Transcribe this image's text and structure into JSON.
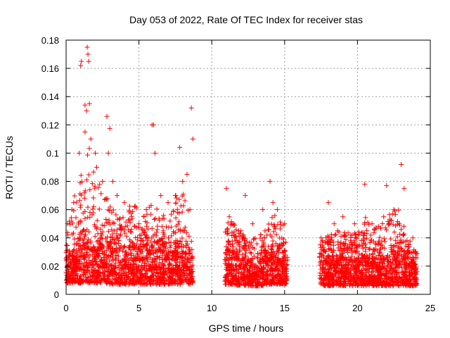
{
  "chart_data": {
    "type": "scatter",
    "title": "Day 053 of 2022, Rate Of TEC Index for receiver stas",
    "xlabel": "GPS time / hours",
    "ylabel": "ROTI / TECUs",
    "xlim": [
      0,
      25
    ],
    "ylim": [
      0,
      0.18
    ],
    "xticks": [
      0,
      5,
      10,
      15,
      20,
      25
    ],
    "xtick_labels": [
      "0",
      "5",
      "10",
      "15",
      "20",
      "25"
    ],
    "yticks": [
      0,
      0.02,
      0.04,
      0.06,
      0.08,
      0.1,
      0.12,
      0.14,
      0.16,
      0.18
    ],
    "ytick_labels": [
      "0",
      "0.02",
      "0.04",
      "0.06",
      "0.08",
      "0.1",
      "0.12",
      "0.14",
      "0.16",
      "0.18"
    ],
    "grid": true,
    "marker": "+",
    "series_color": "#ff0000",
    "data_segments": [
      {
        "x_start": 0.0,
        "x_end": 8.7
      },
      {
        "x_start": 10.9,
        "x_end": 15.2
      },
      {
        "x_start": 17.4,
        "x_end": 24.1
      }
    ],
    "x": [
      0.4,
      0.9,
      1.0,
      1.05,
      1.3,
      1.45,
      1.5,
      1.55,
      1.6,
      1.4,
      1.3,
      1.7,
      2.0,
      2.1,
      2.5,
      2.8,
      2.9,
      3.0,
      3.2,
      3.5,
      4.0,
      4.5,
      5.0,
      5.5,
      5.9,
      6.0,
      6.1,
      6.5,
      7.0,
      7.5,
      7.8,
      8.0,
      8.3,
      8.5,
      8.6,
      8.7,
      11.0,
      11.2,
      11.5,
      12.0,
      12.3,
      12.8,
      13.5,
      14.0,
      14.2,
      14.5,
      15.0,
      17.5,
      18.0,
      18.4,
      19.0,
      19.8,
      20.5,
      21.0,
      21.8,
      22.0,
      22.5,
      23.0,
      23.2,
      23.8,
      24.0
    ],
    "y": [
      0.06,
      0.1,
      0.162,
      0.165,
      0.134,
      0.175,
      0.17,
      0.165,
      0.135,
      0.13,
      0.115,
      0.11,
      0.1,
      0.09,
      0.08,
      0.126,
      0.1,
      0.1175,
      0.08,
      0.07,
      0.065,
      0.055,
      0.05,
      0.06,
      0.12,
      0.12,
      0.1,
      0.07,
      0.065,
      0.07,
      0.104,
      0.08,
      0.085,
      0.06,
      0.132,
      0.11,
      0.075,
      0.055,
      0.05,
      0.045,
      0.07,
      0.05,
      0.06,
      0.08,
      0.065,
      0.06,
      0.05,
      0.04,
      0.065,
      0.05,
      0.055,
      0.05,
      0.078,
      0.05,
      0.055,
      0.077,
      0.06,
      0.092,
      0.075,
      0.04,
      0.03
    ],
    "density_envelope": {
      "x": [
        0,
        0.5,
        1,
        1.5,
        2,
        2.5,
        3,
        3.5,
        4,
        4.5,
        5,
        5.5,
        6,
        6.5,
        7,
        7.5,
        8,
        8.5,
        8.7,
        11,
        11.5,
        12,
        12.5,
        13,
        13.5,
        14,
        14.5,
        15,
        15.2,
        17.4,
        18,
        18.5,
        19,
        19.5,
        20,
        20.5,
        21,
        21.5,
        22,
        22.5,
        23,
        23.5,
        24
      ],
      "y_low": [
        0.008,
        0.008,
        0.008,
        0.008,
        0.008,
        0.008,
        0.007,
        0.007,
        0.007,
        0.007,
        0.007,
        0.007,
        0.007,
        0.007,
        0.007,
        0.007,
        0.007,
        0.007,
        0.008,
        0.007,
        0.007,
        0.006,
        0.006,
        0.006,
        0.006,
        0.007,
        0.007,
        0.007,
        0.008,
        0.006,
        0.006,
        0.006,
        0.006,
        0.006,
        0.006,
        0.006,
        0.006,
        0.006,
        0.006,
        0.006,
        0.006,
        0.006,
        0.006
      ],
      "y_high": [
        0.045,
        0.07,
        0.09,
        0.11,
        0.085,
        0.075,
        0.065,
        0.06,
        0.055,
        0.065,
        0.06,
        0.06,
        0.065,
        0.06,
        0.05,
        0.07,
        0.075,
        0.06,
        0.05,
        0.055,
        0.05,
        0.045,
        0.04,
        0.04,
        0.045,
        0.06,
        0.055,
        0.05,
        0.04,
        0.035,
        0.045,
        0.05,
        0.045,
        0.045,
        0.045,
        0.055,
        0.05,
        0.05,
        0.055,
        0.06,
        0.06,
        0.04,
        0.03
      ],
      "y_core": [
        0.025,
        0.03,
        0.035,
        0.04,
        0.035,
        0.035,
        0.035,
        0.03,
        0.03,
        0.035,
        0.03,
        0.03,
        0.035,
        0.03,
        0.03,
        0.035,
        0.03,
        0.03,
        0.025,
        0.03,
        0.025,
        0.025,
        0.02,
        0.02,
        0.025,
        0.03,
        0.025,
        0.025,
        0.02,
        0.02,
        0.025,
        0.025,
        0.025,
        0.025,
        0.025,
        0.025,
        0.025,
        0.025,
        0.025,
        0.03,
        0.03,
        0.025,
        0.02
      ]
    }
  }
}
